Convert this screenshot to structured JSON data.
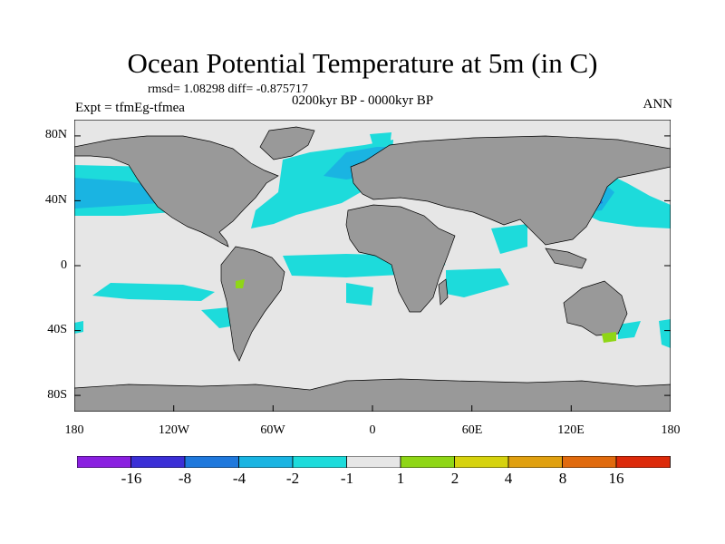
{
  "title": "Ocean Potential Temperature at 5m (in C)",
  "stats": "rmsd= 1.08298 diff= -0.875717",
  "experiment": "Expt = tfmEg-tfmea",
  "period": "0200kyr BP - 0000kyr BP",
  "season": "ANN",
  "map": {
    "lat_ticks": [
      "80N",
      "40N",
      "0",
      "40S",
      "80S"
    ],
    "lon_ticks": [
      "180",
      "120W",
      "60W",
      "0",
      "60E",
      "120E",
      "180"
    ],
    "colors": {
      "land": "#999999",
      "no_change": "#e6e6e6",
      "coastline": "#000000"
    }
  },
  "legend": {
    "labels": [
      "-16",
      "-8",
      "-4",
      "-2",
      "-1",
      "1",
      "2",
      "4",
      "8",
      "16"
    ],
    "colors": [
      "#8a20e0",
      "#3b2fd6",
      "#1f78dc",
      "#1ab4e2",
      "#1ddbdb",
      "#e6e6e6",
      "#8fd616",
      "#d6d20e",
      "#e0a010",
      "#e06a0e",
      "#dc2a0a"
    ]
  }
}
